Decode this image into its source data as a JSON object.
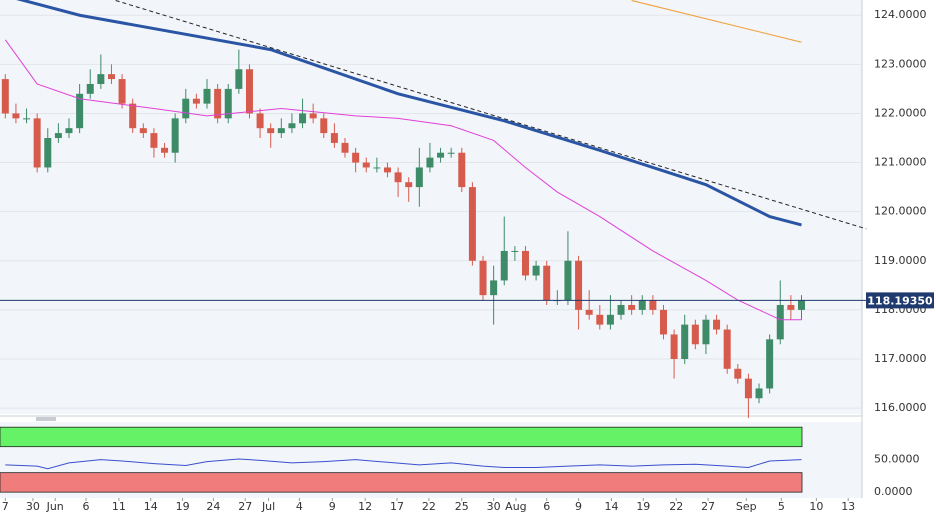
{
  "chart_data": [
    {
      "type": "candlestick",
      "xlim": [
        -0.5,
        80.7
      ],
      "ylim": [
        115.88,
        124.31
      ],
      "yticks": [
        {
          "value": 124,
          "label": "124.0000"
        },
        {
          "value": 123,
          "label": "123.0000"
        },
        {
          "value": 122,
          "label": "122.0000"
        },
        {
          "value": 121,
          "label": "121.0000"
        },
        {
          "value": 120,
          "label": "120.0000"
        },
        {
          "value": 119,
          "label": "119.0000"
        },
        {
          "value": 118,
          "label": "118.0000"
        },
        {
          "value": 117,
          "label": "117.0000"
        },
        {
          "value": 116,
          "label": "116.0000"
        }
      ],
      "grid": true,
      "up_color": "#3d8b67",
      "down_color": "#d65b4c",
      "open": [
        122.7,
        122.0,
        121.9,
        121.9,
        120.9,
        121.5,
        121.6,
        121.7,
        122.4,
        122.6,
        122.8,
        122.7,
        122.2,
        121.7,
        121.6,
        121.3,
        121.2,
        121.9,
        122.3,
        122.2,
        122.5,
        121.9,
        122.5,
        122.9,
        122.0,
        121.7,
        121.6,
        121.7,
        121.8,
        122.0,
        121.9,
        121.6,
        121.4,
        121.2,
        121.0,
        120.9,
        120.9,
        120.8,
        120.6,
        120.5,
        120.9,
        121.1,
        121.2,
        121.2,
        120.5,
        119.0,
        118.3,
        118.6,
        119.2,
        119.2,
        118.7,
        118.9,
        118.2,
        118.2,
        119.0,
        118.0,
        117.9,
        117.7,
        117.9,
        118.1,
        118.0,
        118.2,
        118.0,
        117.5,
        117.0,
        117.7,
        117.3,
        117.8,
        117.6,
        116.8,
        116.6,
        116.2,
        116.4,
        117.4,
        118.1,
        118.0
      ],
      "high": [
        122.8,
        122.2,
        122.1,
        122.0,
        121.7,
        121.8,
        121.9,
        122.6,
        122.9,
        123.2,
        123.0,
        122.8,
        122.3,
        121.8,
        121.7,
        121.4,
        122.0,
        122.5,
        122.4,
        122.7,
        122.6,
        122.6,
        123.3,
        123.0,
        122.1,
        121.8,
        121.9,
        122.0,
        122.3,
        122.2,
        122.0,
        121.8,
        121.5,
        121.3,
        121.1,
        121.1,
        121.0,
        120.9,
        120.7,
        121.3,
        121.4,
        121.3,
        121.3,
        121.3,
        120.6,
        119.1,
        118.9,
        119.9,
        119.3,
        119.3,
        119.0,
        119.0,
        118.4,
        119.6,
        119.1,
        118.4,
        118.1,
        118.3,
        118.2,
        118.3,
        118.3,
        118.3,
        118.1,
        117.6,
        117.9,
        117.8,
        117.9,
        117.9,
        117.7,
        116.9,
        116.7,
        116.5,
        117.5,
        118.6,
        118.3,
        118.3
      ],
      "low": [
        121.9,
        121.8,
        121.8,
        120.8,
        120.8,
        121.4,
        121.5,
        121.6,
        122.3,
        122.5,
        122.6,
        122.1,
        121.6,
        121.5,
        121.1,
        121.1,
        121.0,
        121.8,
        122.1,
        122.1,
        121.8,
        121.8,
        122.4,
        121.9,
        121.5,
        121.3,
        121.5,
        121.6,
        121.7,
        121.8,
        121.5,
        121.3,
        121.1,
        120.8,
        120.8,
        120.8,
        120.7,
        120.3,
        120.2,
        120.1,
        120.8,
        121.0,
        121.1,
        120.4,
        118.9,
        118.2,
        117.7,
        118.5,
        119.0,
        118.6,
        118.6,
        118.1,
        118.1,
        118.1,
        117.6,
        117.8,
        117.6,
        117.6,
        117.8,
        117.9,
        117.9,
        117.9,
        117.4,
        116.6,
        116.9,
        117.2,
        117.1,
        117.5,
        116.7,
        116.5,
        115.8,
        116.1,
        116.3,
        117.3,
        117.8,
        117.8
      ],
      "close": [
        122.0,
        121.9,
        121.9,
        120.9,
        121.5,
        121.6,
        121.7,
        122.4,
        122.6,
        122.8,
        122.7,
        122.2,
        121.7,
        121.6,
        121.3,
        121.2,
        121.9,
        122.3,
        122.2,
        122.5,
        121.9,
        122.5,
        122.9,
        122.0,
        121.7,
        121.6,
        121.7,
        121.8,
        122.0,
        121.9,
        121.6,
        121.4,
        121.2,
        121.0,
        120.9,
        120.9,
        120.8,
        120.6,
        120.5,
        120.9,
        121.1,
        121.2,
        121.2,
        120.5,
        119.0,
        118.3,
        118.6,
        119.2,
        119.2,
        118.7,
        118.9,
        118.2,
        118.2,
        119.0,
        118.0,
        117.9,
        117.7,
        117.9,
        118.1,
        118.0,
        118.2,
        118.0,
        117.5,
        117.0,
        117.7,
        117.3,
        117.8,
        117.6,
        116.8,
        116.6,
        116.2,
        116.4,
        117.4,
        118.1,
        118.0,
        118.19
      ],
      "lines": [
        {
          "color": "#2a55a5",
          "width": 3,
          "x": [
            0,
            7,
            25,
            37,
            47,
            56,
            66,
            72,
            75
          ],
          "values": [
            124.4,
            124.0,
            123.3,
            122.4,
            121.85,
            121.25,
            120.55,
            119.9,
            119.73
          ]
        },
        {
          "color": "#e040d8",
          "width": 1,
          "x": [
            0,
            3,
            7,
            14,
            19,
            26,
            33,
            37,
            42,
            46,
            49,
            52,
            56,
            61,
            66,
            69,
            73,
            75
          ],
          "values": [
            123.5,
            122.6,
            122.3,
            122.1,
            121.95,
            122.1,
            121.95,
            121.9,
            121.75,
            121.45,
            120.9,
            120.4,
            119.9,
            119.2,
            118.6,
            118.2,
            117.8,
            117.8
          ]
        },
        {
          "color": "#f39c32",
          "width": 1,
          "x": [
            59,
            75
          ],
          "values": [
            124.3,
            123.45
          ]
        },
        {
          "color": "#222222",
          "width": 1,
          "dash": true,
          "x": [
            10.4,
            81.1
          ],
          "values": [
            124.3,
            119.65
          ]
        }
      ],
      "last_price": {
        "value": 118.1935,
        "label": "118.19350"
      },
      "last_color": "#1e3a6e"
    },
    {
      "type": "line",
      "xlim": [
        -0.5,
        80.7
      ],
      "ylim": [
        -9,
        108
      ],
      "yticks": [
        {
          "value": 50,
          "label": "50.0000"
        },
        {
          "value": 0,
          "label": "0.0000"
        }
      ],
      "bands": [
        {
          "range": [
            70,
            100
          ],
          "color": "#66f266"
        },
        {
          "range": [
            0,
            30
          ],
          "color": "#f07c7c"
        }
      ],
      "xticks": [
        {
          "value": 0,
          "label": "7"
        },
        {
          "value": 2.6,
          "label": "30"
        },
        {
          "value": 4.7,
          "label": "Jun"
        },
        {
          "value": 7.6,
          "label": "6"
        },
        {
          "value": 10.7,
          "label": "11"
        },
        {
          "value": 13.7,
          "label": "14"
        },
        {
          "value": 16.7,
          "label": "19"
        },
        {
          "value": 19.6,
          "label": "24"
        },
        {
          "value": 22.6,
          "label": "27"
        },
        {
          "value": 24.8,
          "label": "Jul"
        },
        {
          "value": 27.7,
          "label": "4"
        },
        {
          "value": 30.8,
          "label": "9"
        },
        {
          "value": 33.9,
          "label": "12"
        },
        {
          "value": 36.9,
          "label": "17"
        },
        {
          "value": 39.9,
          "label": "22"
        },
        {
          "value": 43,
          "label": "25"
        },
        {
          "value": 46,
          "label": "30"
        },
        {
          "value": 48.1,
          "label": "Aug"
        },
        {
          "value": 51,
          "label": "6"
        },
        {
          "value": 54,
          "label": "9"
        },
        {
          "value": 57.1,
          "label": "14"
        },
        {
          "value": 60.1,
          "label": "19"
        },
        {
          "value": 63.2,
          "label": "22"
        },
        {
          "value": 66.2,
          "label": "27"
        },
        {
          "value": 69.8,
          "label": "Sep"
        },
        {
          "value": 73.1,
          "label": "5"
        },
        {
          "value": 76.4,
          "label": "10"
        },
        {
          "value": 79.4,
          "label": "13"
        }
      ],
      "series": [
        {
          "color": "#3a4fd0",
          "x": [
            0,
            3,
            4,
            6,
            9,
            11,
            14,
            17,
            19,
            22,
            24,
            27,
            30,
            33,
            36,
            39,
            42,
            45,
            47,
            50,
            53,
            56,
            59,
            62,
            65,
            68,
            70,
            72,
            75
          ],
          "values": [
            42,
            40,
            36,
            45,
            50,
            48,
            44,
            41,
            47,
            51,
            49,
            45,
            47,
            50,
            46,
            42,
            45,
            40,
            38,
            38,
            40,
            42,
            40,
            42,
            43,
            40,
            38,
            48,
            50
          ]
        }
      ]
    }
  ]
}
